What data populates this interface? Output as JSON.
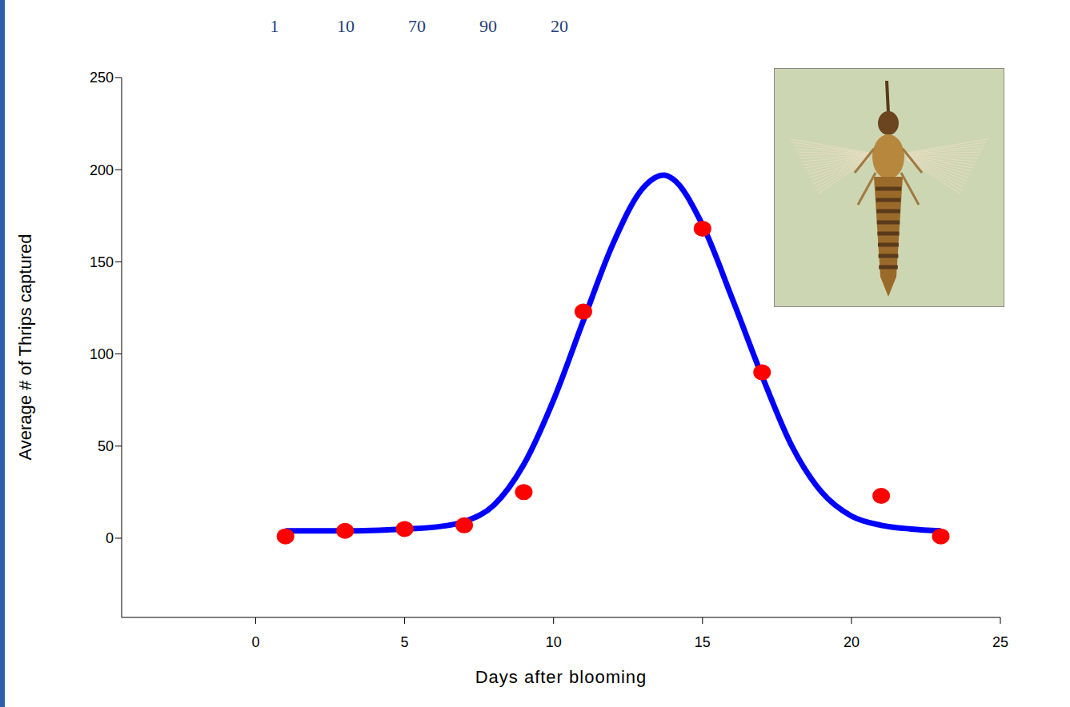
{
  "chart_data": {
    "type": "scatter",
    "x_label": "Days after blooming",
    "y_label": "Average # of Thrips captured",
    "annotations": [
      1,
      10,
      70,
      90,
      20
    ],
    "xlim": [
      -4.5,
      25
    ],
    "xticks": [
      0,
      5,
      10,
      15,
      20,
      25
    ],
    "ylim": [
      -43,
      250
    ],
    "yticks": [
      0,
      50,
      100,
      150,
      200,
      250
    ],
    "grid": false,
    "series": [
      {
        "type": "scatter",
        "color": "#ff0000",
        "marker": "circle",
        "x": [
          1,
          3,
          5,
          7,
          9,
          11,
          15,
          17,
          21,
          23
        ],
        "values": [
          1,
          4,
          5,
          7,
          25,
          123,
          168,
          90,
          23,
          1
        ]
      },
      {
        "type": "line",
        "color": "#0000ff",
        "line_style": "solid",
        "x": [
          1,
          3,
          5,
          6,
          7,
          8,
          9,
          10,
          11,
          12,
          13,
          13.7,
          14,
          15,
          16,
          17,
          18,
          19,
          20,
          21,
          22,
          23
        ],
        "values": [
          4,
          4,
          5,
          6,
          9,
          18,
          40,
          75,
          118,
          160,
          190,
          197,
          195,
          170,
          130,
          88,
          50,
          25,
          12,
          7,
          5,
          4
        ]
      }
    ]
  }
}
